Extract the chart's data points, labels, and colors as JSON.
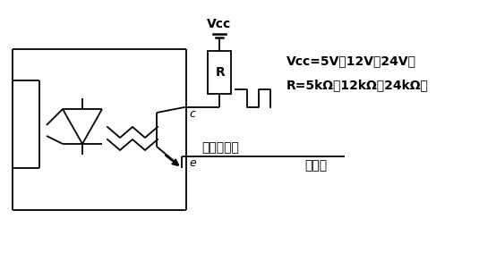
{
  "bg_color": "#ffffff",
  "line_color": "#000000",
  "fig_width": 5.54,
  "fig_height": 2.92,
  "dpi": 100,
  "vcc_label": "Vcc",
  "c_label": "c",
  "e_label": "e",
  "R_label": "R",
  "info_line1": "Vcc=5V（12V，24V）",
  "info_line2": "R=5kΩ（12kΩ，24kΩ）",
  "connect_label": "接至标准表",
  "ground_label": "测试地"
}
